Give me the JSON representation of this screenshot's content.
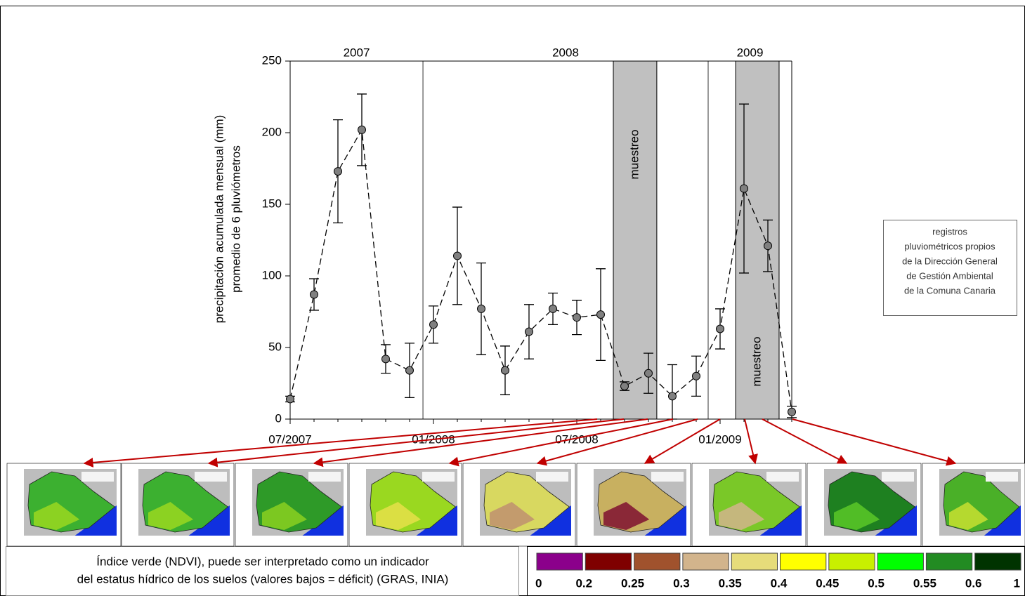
{
  "chart_data": {
    "type": "line",
    "ylabel": [
      "precipitación acumulada mensual (mm)",
      "promedio de 6 pluviómetros"
    ],
    "categories": [
      "07/2007",
      null,
      null,
      null,
      null,
      null,
      "01/2008",
      null,
      null,
      null,
      null,
      null,
      "07/2008",
      null,
      null,
      null,
      null,
      null,
      "01/2009",
      null,
      null,
      null
    ],
    "xlim": [
      0,
      21
    ],
    "series": [
      {
        "color": "#808080",
        "values": [
          14,
          87,
          173,
          202,
          42,
          34,
          66,
          114,
          77,
          34,
          61,
          77,
          71,
          73,
          23,
          32,
          16,
          30,
          63,
          161,
          121,
          5
        ],
        "errors": [
          2,
          11,
          36,
          25,
          10,
          19,
          13,
          34,
          32,
          17,
          19,
          11,
          12,
          32,
          3,
          14,
          22,
          14,
          14,
          59,
          18,
          4
        ]
      }
    ],
    "ylim": [
      0,
      250
    ],
    "yticks": [
      0,
      50,
      100,
      150,
      200,
      250
    ],
    "year_labels": [
      "2007",
      "2008",
      "2009"
    ],
    "year_dividers": [
      5.56,
      17.5
    ],
    "shaded_regions": [
      {
        "label": "muestreo",
        "start": 13.53,
        "end": 15.35
      },
      {
        "label": "muestreo",
        "start": 18.65,
        "end": 20.47
      }
    ]
  },
  "annotation": [
    "registros",
    "pluviométricos propios",
    "de la Dirección General",
    "de Gestión Ambiental",
    "de la  Comuna Canaria"
  ],
  "caption": [
    "Índice verde (NDVI), puede ser interpretado como un indicador",
    "del estatus hídrico de los suelos (valores bajos = déficit) (GRAS, INIA)"
  ],
  "ndvi_legend": {
    "colors": [
      "#8b008b",
      "#7f0000",
      "#a0522d",
      "#d2b48c",
      "#e6dc7a",
      "#ffff00",
      "#c8f000",
      "#00ff00",
      "#228b22",
      "#003300"
    ],
    "labels": [
      0,
      0.2,
      0.25,
      0.3,
      0.35,
      0.4,
      0.45,
      0.5,
      0.55,
      0.6,
      1
    ]
  }
}
